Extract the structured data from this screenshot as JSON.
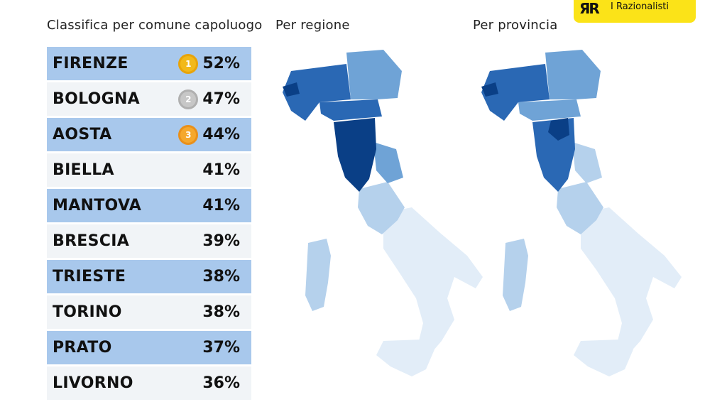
{
  "titles": {
    "table": "Classifica per comune capoluogo",
    "region": "Per regione",
    "province": "Per provincia"
  },
  "logo": {
    "text": "I Razionalisti"
  },
  "medals": {
    "first": "1",
    "second": "2",
    "third": "3"
  },
  "ranking": [
    {
      "city": "FIRENZE",
      "pct": "52%"
    },
    {
      "city": "BOLOGNA",
      "pct": "47%"
    },
    {
      "city": "AOSTA",
      "pct": "44%"
    },
    {
      "city": "BIELLA",
      "pct": "41%"
    },
    {
      "city": "MANTOVA",
      "pct": "41%"
    },
    {
      "city": "BRESCIA",
      "pct": "39%"
    },
    {
      "city": "TRIESTE",
      "pct": "38%"
    },
    {
      "city": "TORINO",
      "pct": "38%"
    },
    {
      "city": "PRATO",
      "pct": "37%"
    },
    {
      "city": "LIVORNO",
      "pct": "36%"
    }
  ],
  "colors": {
    "row_highlight": "#a8c8ec",
    "row_plain": "#f1f4f7",
    "map_darkest": "#0a3f86",
    "map_dark": "#2a68b4",
    "map_mid": "#6fa3d6",
    "map_light": "#b5d1ec",
    "map_faint": "#e2edf8",
    "logo_yellow": "#fbe318"
  }
}
